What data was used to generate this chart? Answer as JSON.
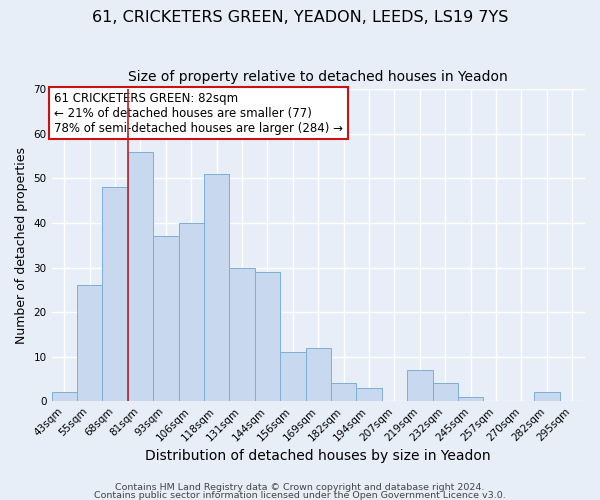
{
  "title": "61, CRICKETERS GREEN, YEADON, LEEDS, LS19 7YS",
  "subtitle": "Size of property relative to detached houses in Yeadon",
  "xlabel": "Distribution of detached houses by size in Yeadon",
  "ylabel": "Number of detached properties",
  "bins": [
    "43sqm",
    "55sqm",
    "68sqm",
    "81sqm",
    "93sqm",
    "106sqm",
    "118sqm",
    "131sqm",
    "144sqm",
    "156sqm",
    "169sqm",
    "182sqm",
    "194sqm",
    "207sqm",
    "219sqm",
    "232sqm",
    "245sqm",
    "257sqm",
    "270sqm",
    "282sqm",
    "295sqm"
  ],
  "values": [
    2,
    26,
    48,
    56,
    37,
    40,
    51,
    30,
    29,
    11,
    12,
    4,
    3,
    0,
    7,
    4,
    1,
    0,
    0,
    2,
    0
  ],
  "bar_color": "#c8d8ef",
  "bar_edge_color": "#7bafd4",
  "ylim": [
    0,
    70
  ],
  "yticks": [
    0,
    10,
    20,
    30,
    40,
    50,
    60,
    70
  ],
  "vline_x_index": 3,
  "vline_color": "#bb2222",
  "annotation_text": "61 CRICKETERS GREEN: 82sqm\n← 21% of detached houses are smaller (77)\n78% of semi-detached houses are larger (284) →",
  "annotation_box_facecolor": "#ffffff",
  "annotation_box_edgecolor": "#cc1111",
  "footer_line1": "Contains HM Land Registry data © Crown copyright and database right 2024.",
  "footer_line2": "Contains public sector information licensed under the Open Government Licence v3.0.",
  "fig_facecolor": "#e8eef8",
  "ax_facecolor": "#e8eef8",
  "grid_color": "#ffffff",
  "title_fontsize": 11.5,
  "subtitle_fontsize": 10,
  "ylabel_fontsize": 9,
  "xlabel_fontsize": 10,
  "tick_fontsize": 7.5,
  "annotation_fontsize": 8.5,
  "footer_fontsize": 6.8
}
